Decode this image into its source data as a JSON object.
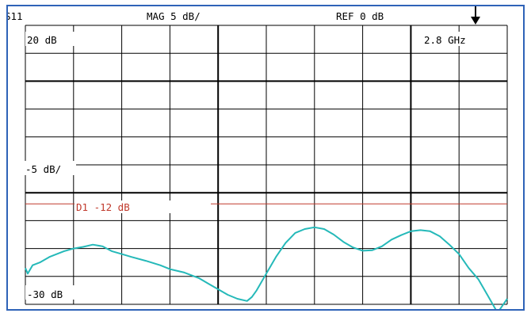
{
  "header": {
    "param": "S11",
    "scale": "MAG 5 dB/",
    "reference": "REF 0 dB"
  },
  "marker_arrow_icon": "arrow-down-icon",
  "colors": {
    "frame": "#2f63b8",
    "grid": "#000000",
    "trace": "#25b9b9",
    "limit_line": "#c0392b"
  },
  "chart_data": {
    "type": "line",
    "title": "",
    "ylim": [
      -30,
      20
    ],
    "y_grid_step": 5,
    "x_divisions": 10,
    "grid": true,
    "annotations": {
      "top_left": "20 dB",
      "top_right": "2.8 GHz",
      "scale_label": "-5 dB/",
      "bottom_left": "-30 dB"
    },
    "limit_line": {
      "label": "D1 -12 dB",
      "value": -12
    },
    "series": [
      {
        "x": [
          0,
          0.05,
          0.15,
          0.3,
          0.5,
          0.8,
          1.0,
          1.2,
          1.4,
          1.6,
          1.8,
          2.0,
          2.2,
          2.5,
          2.8,
          3.0,
          3.3,
          3.6,
          3.8,
          4.0,
          4.2,
          4.4,
          4.6,
          4.7,
          4.8,
          5.0,
          5.2,
          5.4,
          5.6,
          5.8,
          6.0,
          6.2,
          6.4,
          6.6,
          6.8,
          7.0,
          7.2,
          7.4,
          7.6,
          7.8,
          8.0,
          8.2,
          8.4,
          8.6,
          8.8,
          9.0,
          9.2,
          9.4,
          9.6,
          9.8,
          10.0
        ],
        "y": [
          -23.5,
          -24.5,
          -23.0,
          -22.5,
          -21.5,
          -20.5,
          -20.0,
          -19.7,
          -19.3,
          -19.6,
          -20.5,
          -21.0,
          -21.5,
          -22.2,
          -23.0,
          -23.7,
          -24.3,
          -25.3,
          -26.3,
          -27.3,
          -28.3,
          -29.0,
          -29.4,
          -28.7,
          -27.5,
          -24.5,
          -21.5,
          -19.0,
          -17.2,
          -16.5,
          -16.2,
          -16.5,
          -17.5,
          -18.8,
          -19.8,
          -20.4,
          -20.3,
          -19.6,
          -18.4,
          -17.6,
          -16.9,
          -16.7,
          -16.9,
          -17.8,
          -19.3,
          -21.0,
          -23.5,
          -25.5,
          -28.5,
          -31.5,
          -29.0
        ]
      }
    ]
  }
}
